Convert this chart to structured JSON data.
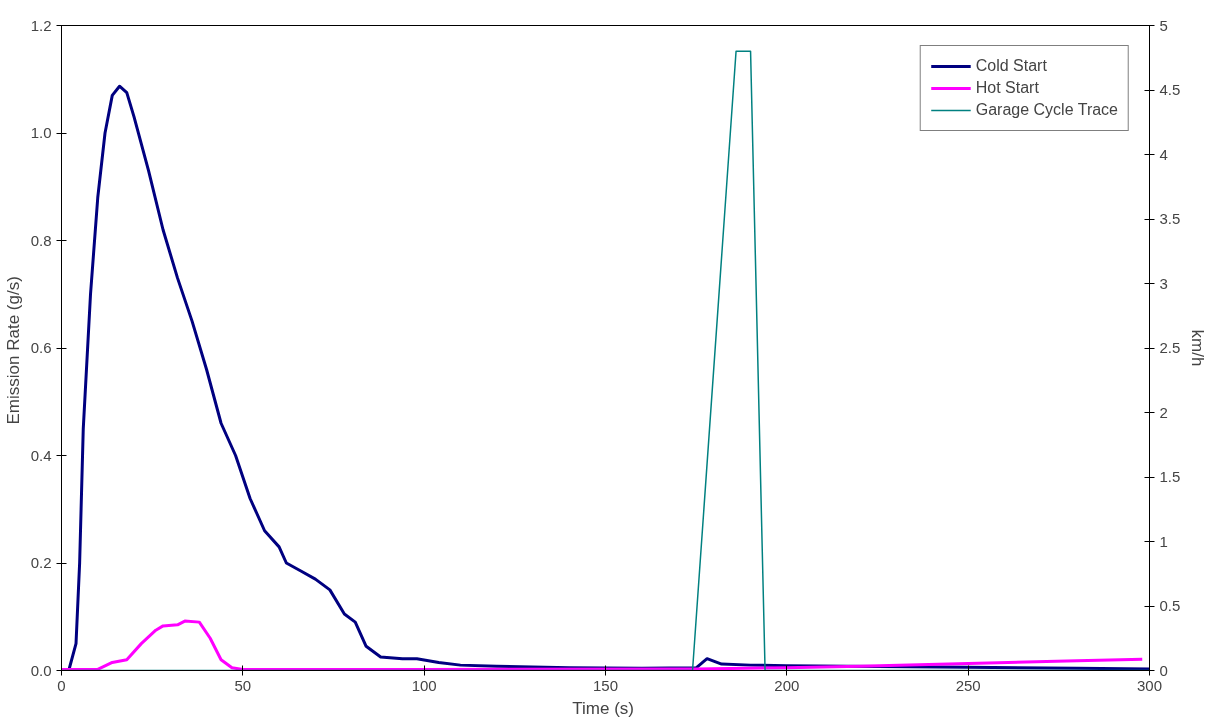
{
  "chart_data": {
    "type": "line",
    "xlabel": "Time  (s)",
    "ylabel": "Emission Rate  (g/s)",
    "y2label": "km/h",
    "xlim": [
      0,
      300
    ],
    "xticks": [
      0,
      50,
      100,
      150,
      200,
      250,
      300
    ],
    "ylim": [
      0,
      1.2
    ],
    "yticks": [
      {
        "value": 0,
        "label": "0.0"
      },
      {
        "value": 0.2,
        "label": "0.2"
      },
      {
        "value": 0.4,
        "label": "0.4"
      },
      {
        "value": 0.6,
        "label": "0.6"
      },
      {
        "value": 0.8,
        "label": "0.8"
      },
      {
        "value": 1.0,
        "label": "1.0"
      },
      {
        "value": 1.2,
        "label": "1.2"
      }
    ],
    "y2lim": [
      0,
      5
    ],
    "y2ticks": [
      0,
      0.5,
      1,
      1.5,
      2,
      2.5,
      3,
      3.5,
      4,
      4.5,
      5
    ],
    "grid": false,
    "legend": "top right",
    "marker": "none",
    "series": [
      {
        "name": "Cold Start",
        "color": "#000080",
        "x": [
          0,
          2,
          4,
          5,
          6,
          8,
          10,
          12,
          14,
          16,
          18,
          20,
          24,
          28,
          32,
          36,
          40,
          44,
          48,
          52,
          56,
          60,
          62,
          66,
          70,
          74,
          78,
          81,
          84,
          88,
          94,
          98,
          104,
          110,
          120,
          140,
          160,
          175,
          178,
          182,
          190,
          200,
          250,
          280,
          300
        ],
        "values": [
          0,
          0,
          0.05,
          0.2,
          0.45,
          0.7,
          0.88,
          1.0,
          1.07,
          1.087,
          1.075,
          1.03,
          0.93,
          0.82,
          0.73,
          0.65,
          0.56,
          0.46,
          0.4,
          0.32,
          0.26,
          0.23,
          0.2,
          0.185,
          0.17,
          0.15,
          0.105,
          0.09,
          0.045,
          0.025,
          0.022,
          0.022,
          0.015,
          0.01,
          0.008,
          0.005,
          0.004,
          0.005,
          0.022,
          0.012,
          0.01,
          0.009,
          0.006,
          0.004,
          0.003
        ]
      },
      {
        "name": "Hot Start",
        "color": "#ff00ff",
        "x": [
          0,
          10,
          14,
          18,
          22,
          26,
          28,
          32,
          34,
          38,
          41,
          44,
          47,
          50,
          100,
          175,
          200,
          220,
          250,
          280,
          298
        ],
        "values": [
          0.002,
          0.002,
          0.015,
          0.02,
          0.05,
          0.075,
          0.083,
          0.085,
          0.092,
          0.09,
          0.06,
          0.02,
          0.005,
          0.002,
          0.002,
          0.003,
          0.005,
          0.008,
          0.013,
          0.018,
          0.021
        ]
      },
      {
        "name": "Garage Cycle Trace",
        "color": "#008080",
        "axis": "y2",
        "x": [
          0,
          174,
          186,
          190,
          194,
          300
        ],
        "values": [
          0,
          0,
          4.8,
          4.8,
          0,
          0
        ]
      }
    ]
  }
}
